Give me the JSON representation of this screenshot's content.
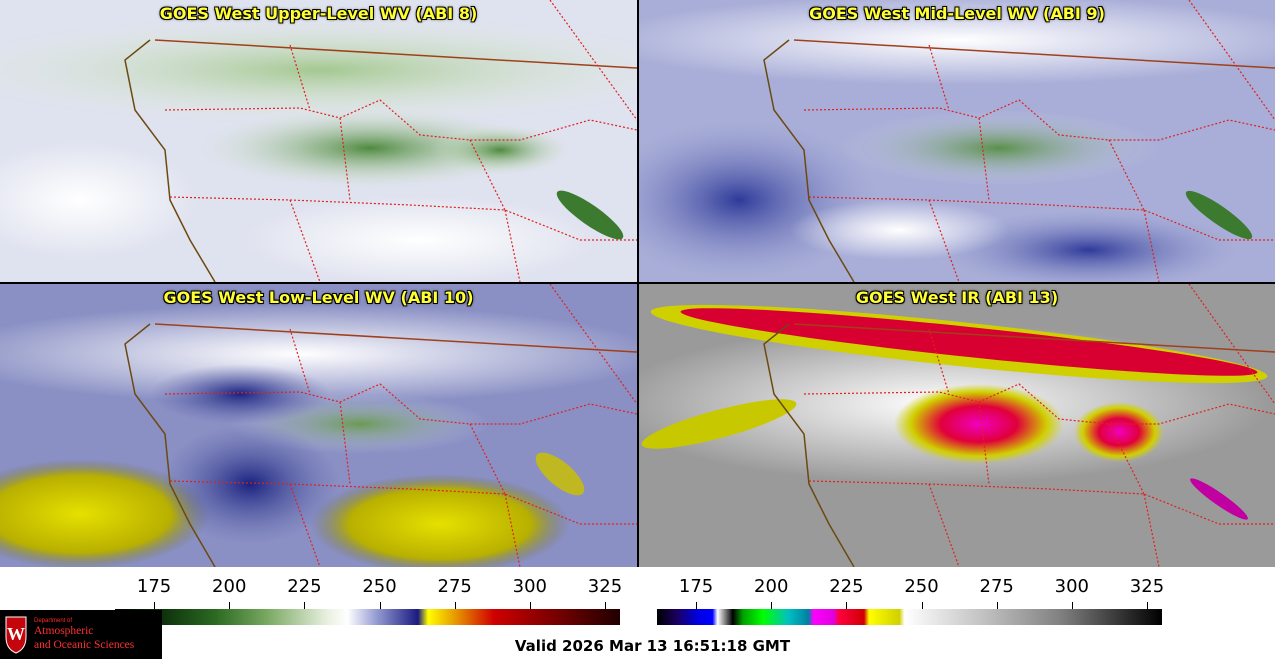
{
  "panels": [
    {
      "title": "GOES West Upper-Level WV (ABI 8)",
      "scheme": "upper"
    },
    {
      "title": "GOES West Mid-Level WV (ABI 9)",
      "scheme": "mid"
    },
    {
      "title": "GOES West Low-Level WV (ABI 10)",
      "scheme": "low"
    },
    {
      "title": "GOES West IR (ABI 13)",
      "scheme": "ir"
    }
  ],
  "colorbars": {
    "wv": {
      "ticks": [
        "175",
        "200",
        "225",
        "250",
        "275",
        "300",
        "325"
      ],
      "range": [
        162,
        330
      ]
    },
    "ir": {
      "ticks": [
        "175",
        "200",
        "225",
        "250",
        "275",
        "300",
        "325"
      ],
      "range": [
        162,
        330
      ]
    }
  },
  "valid_time": "Valid 2026 Mar 13 16:51:18 GMT",
  "logo": {
    "dept": "Department of",
    "line1": "Atmospheric",
    "line2": "and Oceanic Sciences"
  },
  "colors": {
    "title_text": "#ffff33",
    "coastline": "#6b4a10",
    "state_border": "#e02020",
    "intl_border": "#a0401a",
    "logo_text": "#ff3030"
  }
}
